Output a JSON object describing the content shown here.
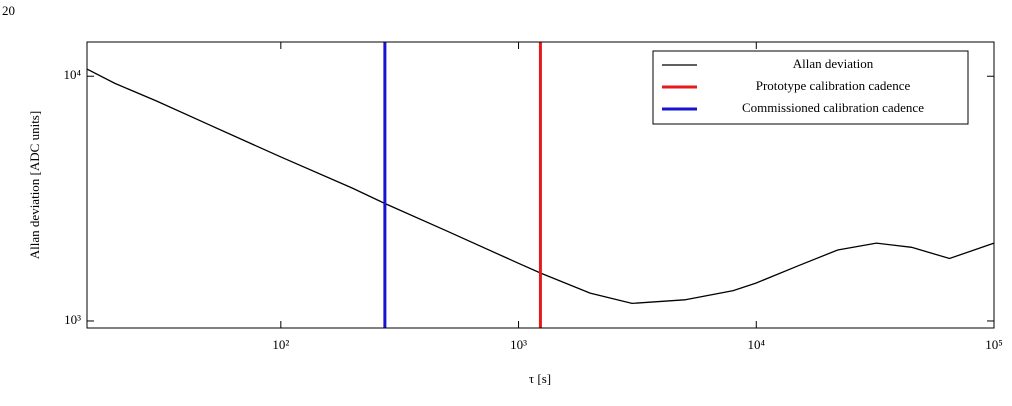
{
  "page_number": "20",
  "chart_data": {
    "type": "line",
    "xlabel": "τ [s]",
    "ylabel": "Allan deviation [ADC units]",
    "xscale": "log",
    "yscale": "log",
    "xlim": [
      15.3,
      100000
    ],
    "ylim": [
      936,
      13800
    ],
    "xticks": [
      {
        "value": 100,
        "label": "10²"
      },
      {
        "value": 1000,
        "label": "10³"
      },
      {
        "value": 10000,
        "label": "10⁴"
      },
      {
        "value": 100000,
        "label": "10⁵"
      }
    ],
    "yticks": [
      {
        "value": 1000,
        "label": "10³"
      },
      {
        "value": 10000,
        "label": "10⁴"
      }
    ],
    "legend": "upper right",
    "x": [
      15.3,
      20,
      30,
      50,
      100,
      200,
      274,
      500,
      1000,
      1236,
      2000,
      3000,
      5000,
      8000,
      10000,
      15000,
      22000,
      32000,
      45000,
      65000,
      100000
    ],
    "series": [
      {
        "name": "Allan deviation",
        "color": "#000000",
        "values": [
          10700,
          9360,
          7920,
          6330,
          4680,
          3490,
          3020,
          2330,
          1720,
          1570,
          1300,
          1180,
          1220,
          1330,
          1430,
          1680,
          1950,
          2080,
          2000,
          1800,
          2080
        ]
      }
    ],
    "vlines": [
      {
        "name": "Prototype calibration cadence",
        "color": "#e41a1c",
        "x": 1236
      },
      {
        "name": "Commissioned calibration cadence",
        "color": "#1515d0",
        "x": 274
      }
    ]
  }
}
